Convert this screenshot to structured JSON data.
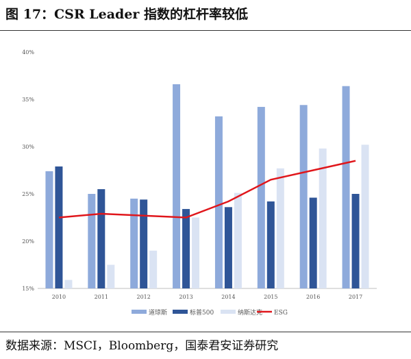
{
  "title": "图 17：CSR Leader 指数的杠杆率较低",
  "source": "数据来源：MSCI，Bloomberg，国泰君安证券研究",
  "chart_data": {
    "type": "bar",
    "title": "CSR Leader 指数的杠杆率较低",
    "categories": [
      "2010",
      "2011",
      "2012",
      "2013",
      "2014",
      "2015",
      "2016",
      "2017"
    ],
    "ylim": [
      15,
      40
    ],
    "yticks": [
      15,
      20,
      25,
      30,
      35,
      40
    ],
    "ytick_labels": [
      "15%",
      "20%",
      "25%",
      "30%",
      "35%",
      "40%"
    ],
    "series": [
      {
        "name": "道琼斯",
        "type": "bar",
        "color": "#8eaadb",
        "values": [
          27.4,
          25.0,
          24.5,
          36.6,
          33.2,
          34.2,
          34.4,
          36.4
        ]
      },
      {
        "name": "标普500",
        "type": "bar",
        "color": "#2f5597",
        "values": [
          27.9,
          25.5,
          24.4,
          23.4,
          23.6,
          24.2,
          24.6,
          25.0
        ]
      },
      {
        "name": "纳斯达克",
        "type": "bar",
        "color": "#dae3f3",
        "values": [
          15.9,
          17.5,
          19.0,
          22.5,
          25.1,
          27.7,
          29.8,
          30.2
        ]
      },
      {
        "name": "ESG",
        "type": "line",
        "color": "#e0161b",
        "values": [
          22.5,
          22.9,
          22.7,
          22.5,
          24.2,
          26.5,
          27.5,
          28.5
        ]
      }
    ],
    "legend": "bottom"
  }
}
